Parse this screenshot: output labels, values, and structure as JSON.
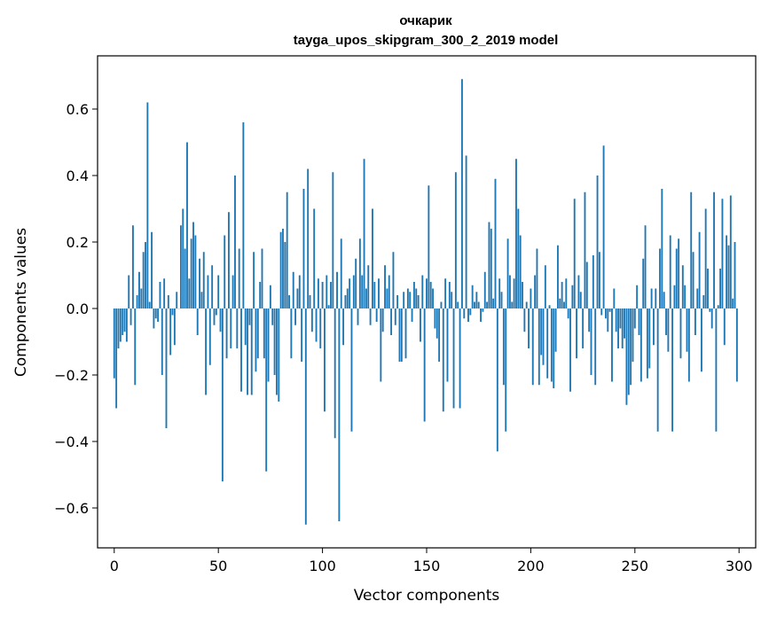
{
  "chart_data": {
    "type": "bar",
    "title": "очкарик",
    "subtitle": "tayga_upos_skipgram_300_2_2019 model",
    "xlabel": "Vector components",
    "ylabel": "Components values",
    "xlim": [
      -8,
      308
    ],
    "ylim": [
      -0.72,
      0.76
    ],
    "xticks": [
      0,
      50,
      100,
      150,
      200,
      250,
      300
    ],
    "yticks": [
      -0.6,
      -0.4,
      -0.2,
      0.0,
      0.2,
      0.4,
      0.6
    ],
    "ytick_labels": [
      "−0.6",
      "−0.4",
      "−0.2",
      "0.0",
      "0.2",
      "0.4",
      "0.6"
    ],
    "bar_color": "#1f77b4",
    "grid": false,
    "values": [
      -0.21,
      -0.3,
      -0.12,
      -0.1,
      -0.08,
      -0.07,
      -0.1,
      0.1,
      -0.05,
      0.25,
      -0.23,
      0.04,
      0.11,
      0.06,
      0.17,
      0.2,
      0.62,
      0.02,
      0.23,
      -0.06,
      -0.03,
      -0.04,
      0.08,
      -0.2,
      0.09,
      -0.36,
      0.04,
      -0.14,
      -0.02,
      -0.11,
      0.05,
      0.0,
      0.25,
      0.3,
      0.18,
      0.5,
      0.09,
      0.21,
      0.26,
      0.22,
      -0.08,
      0.15,
      0.05,
      0.17,
      -0.26,
      0.1,
      -0.17,
      0.13,
      -0.05,
      -0.02,
      0.1,
      -0.07,
      -0.52,
      0.22,
      -0.15,
      0.29,
      -0.12,
      0.1,
      0.4,
      -0.12,
      0.18,
      -0.25,
      0.56,
      -0.11,
      -0.26,
      -0.05,
      -0.26,
      0.17,
      -0.19,
      -0.15,
      0.08,
      0.18,
      -0.15,
      -0.49,
      -0.22,
      0.07,
      -0.05,
      -0.2,
      -0.26,
      -0.28,
      0.23,
      0.24,
      0.2,
      0.35,
      0.04,
      -0.15,
      0.11,
      -0.05,
      0.06,
      0.1,
      -0.16,
      0.36,
      -0.65,
      0.42,
      0.04,
      -0.07,
      0.3,
      -0.1,
      0.09,
      -0.12,
      0.08,
      -0.31,
      0.1,
      0.01,
      0.08,
      0.41,
      -0.39,
      0.11,
      -0.64,
      0.21,
      -0.11,
      0.04,
      0.06,
      0.09,
      -0.37,
      0.1,
      0.15,
      -0.05,
      0.21,
      0.1,
      0.45,
      0.06,
      0.13,
      -0.05,
      0.3,
      0.08,
      -0.04,
      0.09,
      -0.22,
      -0.07,
      0.13,
      0.06,
      0.1,
      -0.08,
      0.17,
      -0.05,
      0.04,
      -0.16,
      -0.16,
      0.05,
      -0.15,
      0.06,
      0.05,
      -0.04,
      0.08,
      0.06,
      0.04,
      -0.1,
      0.1,
      -0.34,
      0.09,
      0.37,
      0.08,
      0.06,
      -0.06,
      -0.09,
      -0.16,
      0.02,
      -0.31,
      0.09,
      -0.22,
      0.08,
      0.05,
      -0.3,
      0.41,
      0.02,
      -0.3,
      0.69,
      -0.03,
      0.46,
      -0.04,
      -0.02,
      0.07,
      0.02,
      0.05,
      0.02,
      -0.04,
      -0.01,
      0.11,
      0.02,
      0.26,
      0.24,
      0.03,
      0.39,
      -0.43,
      0.09,
      0.05,
      -0.23,
      -0.37,
      0.21,
      0.1,
      0.02,
      0.09,
      0.45,
      0.3,
      0.22,
      0.08,
      -0.07,
      0.02,
      -0.12,
      0.06,
      -0.23,
      0.1,
      0.18,
      -0.23,
      -0.14,
      -0.17,
      0.13,
      -0.21,
      0.01,
      -0.22,
      -0.24,
      -0.13,
      0.19,
      0.03,
      0.08,
      0.02,
      0.09,
      -0.03,
      -0.25,
      0.07,
      0.33,
      -0.15,
      0.1,
      0.05,
      -0.12,
      0.35,
      0.14,
      -0.07,
      -0.2,
      0.16,
      -0.23,
      0.4,
      0.17,
      -0.02,
      0.49,
      -0.03,
      -0.07,
      -0.01,
      -0.22,
      0.06,
      -0.07,
      -0.12,
      -0.06,
      -0.12,
      -0.09,
      -0.29,
      -0.26,
      -0.23,
      -0.16,
      -0.06,
      0.07,
      -0.08,
      -0.22,
      0.15,
      0.25,
      -0.21,
      -0.18,
      0.06,
      -0.11,
      0.06,
      -0.37,
      0.18,
      0.36,
      0.05,
      -0.08,
      -0.13,
      0.22,
      -0.37,
      0.07,
      0.18,
      0.21,
      -0.15,
      0.13,
      0.07,
      -0.13,
      -0.22,
      0.35,
      0.17,
      -0.08,
      0.06,
      0.23,
      -0.19,
      0.04,
      0.3,
      0.12,
      -0.01,
      -0.06,
      0.35,
      -0.37,
      0.01,
      0.12,
      0.33,
      -0.11,
      0.22,
      0.19,
      0.34,
      0.03,
      0.2,
      -0.22
    ]
  }
}
